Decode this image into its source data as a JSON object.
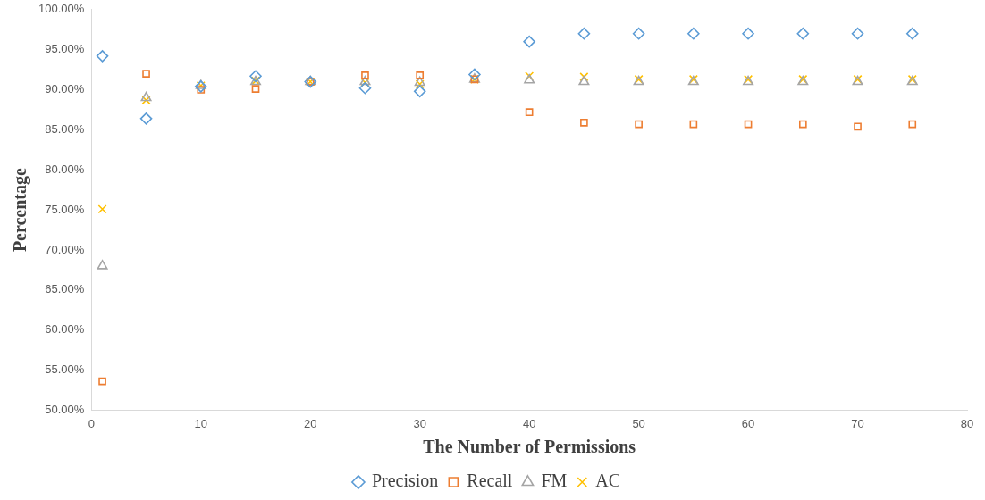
{
  "chart_data": {
    "type": "scatter",
    "xlabel": "The Number of Permissions",
    "ylabel": "Percentage",
    "x": [
      1,
      5,
      10,
      15,
      20,
      25,
      30,
      35,
      40,
      45,
      50,
      55,
      60,
      65,
      70,
      75
    ],
    "series": [
      {
        "name": "Precision",
        "color": "#5b9bd5",
        "marker": "diamond",
        "values": [
          94.2,
          86.4,
          90.4,
          91.7,
          91.0,
          90.2,
          89.8,
          91.9,
          96.0,
          97.0,
          97.0,
          97.0,
          97.0,
          97.0,
          97.0,
          97.0
        ]
      },
      {
        "name": "Recall",
        "color": "#ed7d31",
        "marker": "square",
        "values": [
          53.6,
          92.0,
          90.0,
          90.1,
          91.0,
          91.8,
          91.8,
          91.3,
          87.2,
          85.9,
          85.7,
          85.7,
          85.7,
          85.7,
          85.4,
          85.7
        ]
      },
      {
        "name": "FM",
        "color": "#a5a5a5",
        "marker": "triangle",
        "values": [
          68.0,
          89.0,
          90.5,
          91.0,
          91.0,
          91.0,
          90.9,
          91.3,
          91.2,
          91.0,
          91.0,
          91.0,
          91.0,
          91.0,
          91.0,
          91.0
        ]
      },
      {
        "name": "AC",
        "color": "#ffc000",
        "marker": "cross",
        "values": [
          75.1,
          88.7,
          90.5,
          91.1,
          91.0,
          90.9,
          90.7,
          91.3,
          91.7,
          91.6,
          91.3,
          91.3,
          91.3,
          91.3,
          91.3,
          91.3
        ]
      }
    ],
    "xlim": [
      0,
      80
    ],
    "xticks": [
      0,
      10,
      20,
      30,
      40,
      50,
      60,
      70,
      80
    ],
    "ylim": [
      50,
      100
    ],
    "yticks": [
      {
        "value": 50,
        "label": "50.00%"
      },
      {
        "value": 55,
        "label": "55.00%"
      },
      {
        "value": 60,
        "label": "60.00%"
      },
      {
        "value": 65,
        "label": "65.00%"
      },
      {
        "value": 70,
        "label": "70.00%"
      },
      {
        "value": 75,
        "label": "75.00%"
      },
      {
        "value": 80,
        "label": "80.00%"
      },
      {
        "value": 85,
        "label": "85.00%"
      },
      {
        "value": 90,
        "label": "90.00%"
      },
      {
        "value": 95,
        "label": "95.00%"
      },
      {
        "value": 100,
        "label": "100.00%"
      }
    ],
    "grid": false,
    "legend": "bottom"
  }
}
